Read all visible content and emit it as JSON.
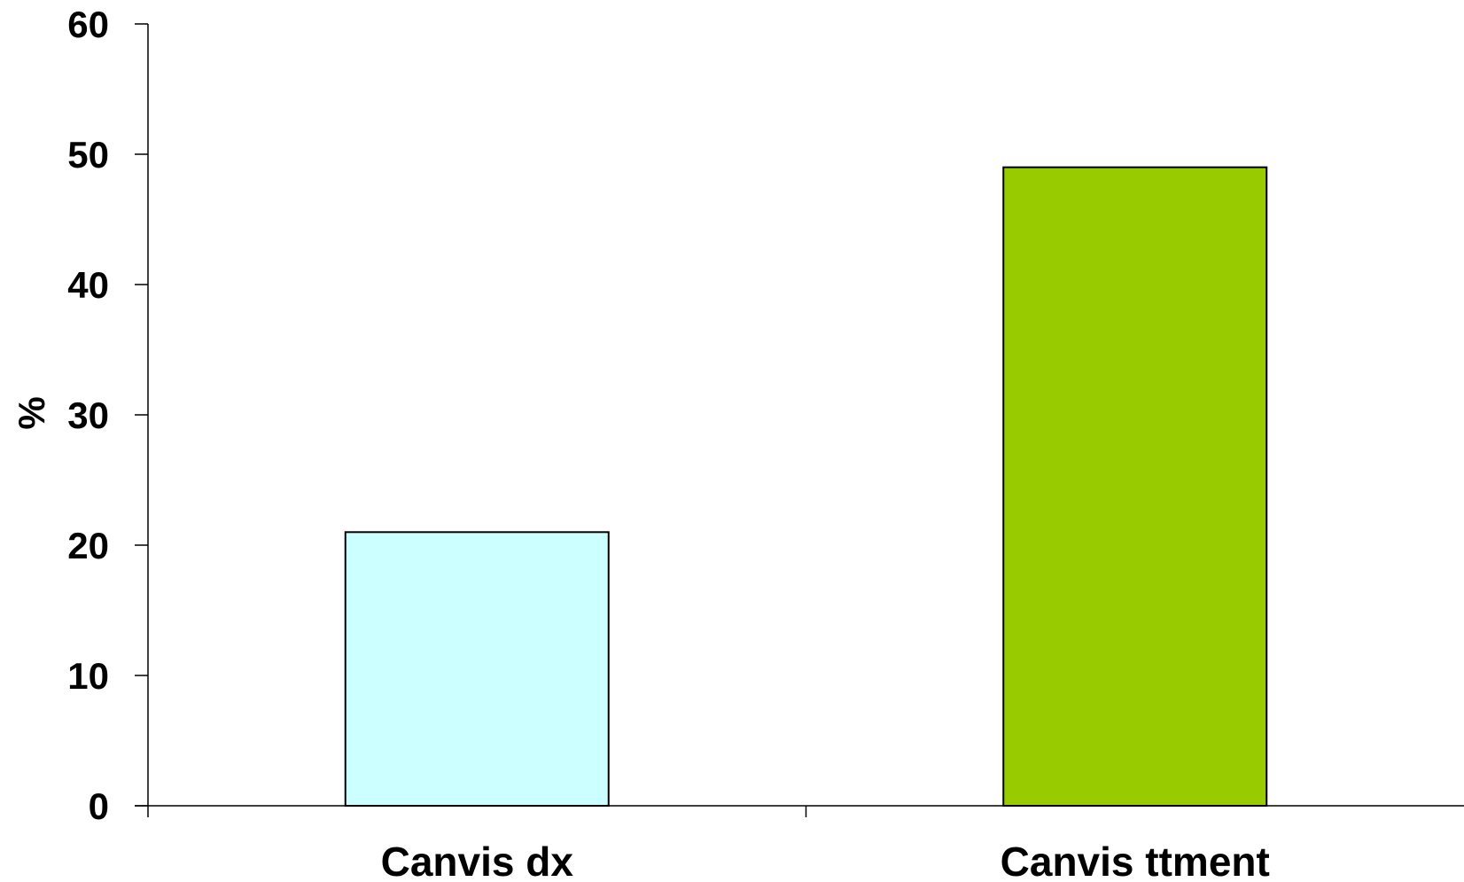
{
  "chart_data": {
    "type": "bar",
    "title": "",
    "xlabel": "",
    "ylabel": "%",
    "categories": [
      "Canvis dx",
      "Canvis ttment"
    ],
    "values": [
      21,
      49
    ],
    "colors": [
      "#ccffff",
      "#99cc00"
    ],
    "ylim": [
      0,
      60
    ],
    "yticks": [
      "0",
      "10",
      "20",
      "30",
      "40",
      "50",
      "60"
    ],
    "grid": false,
    "legend": "none"
  }
}
